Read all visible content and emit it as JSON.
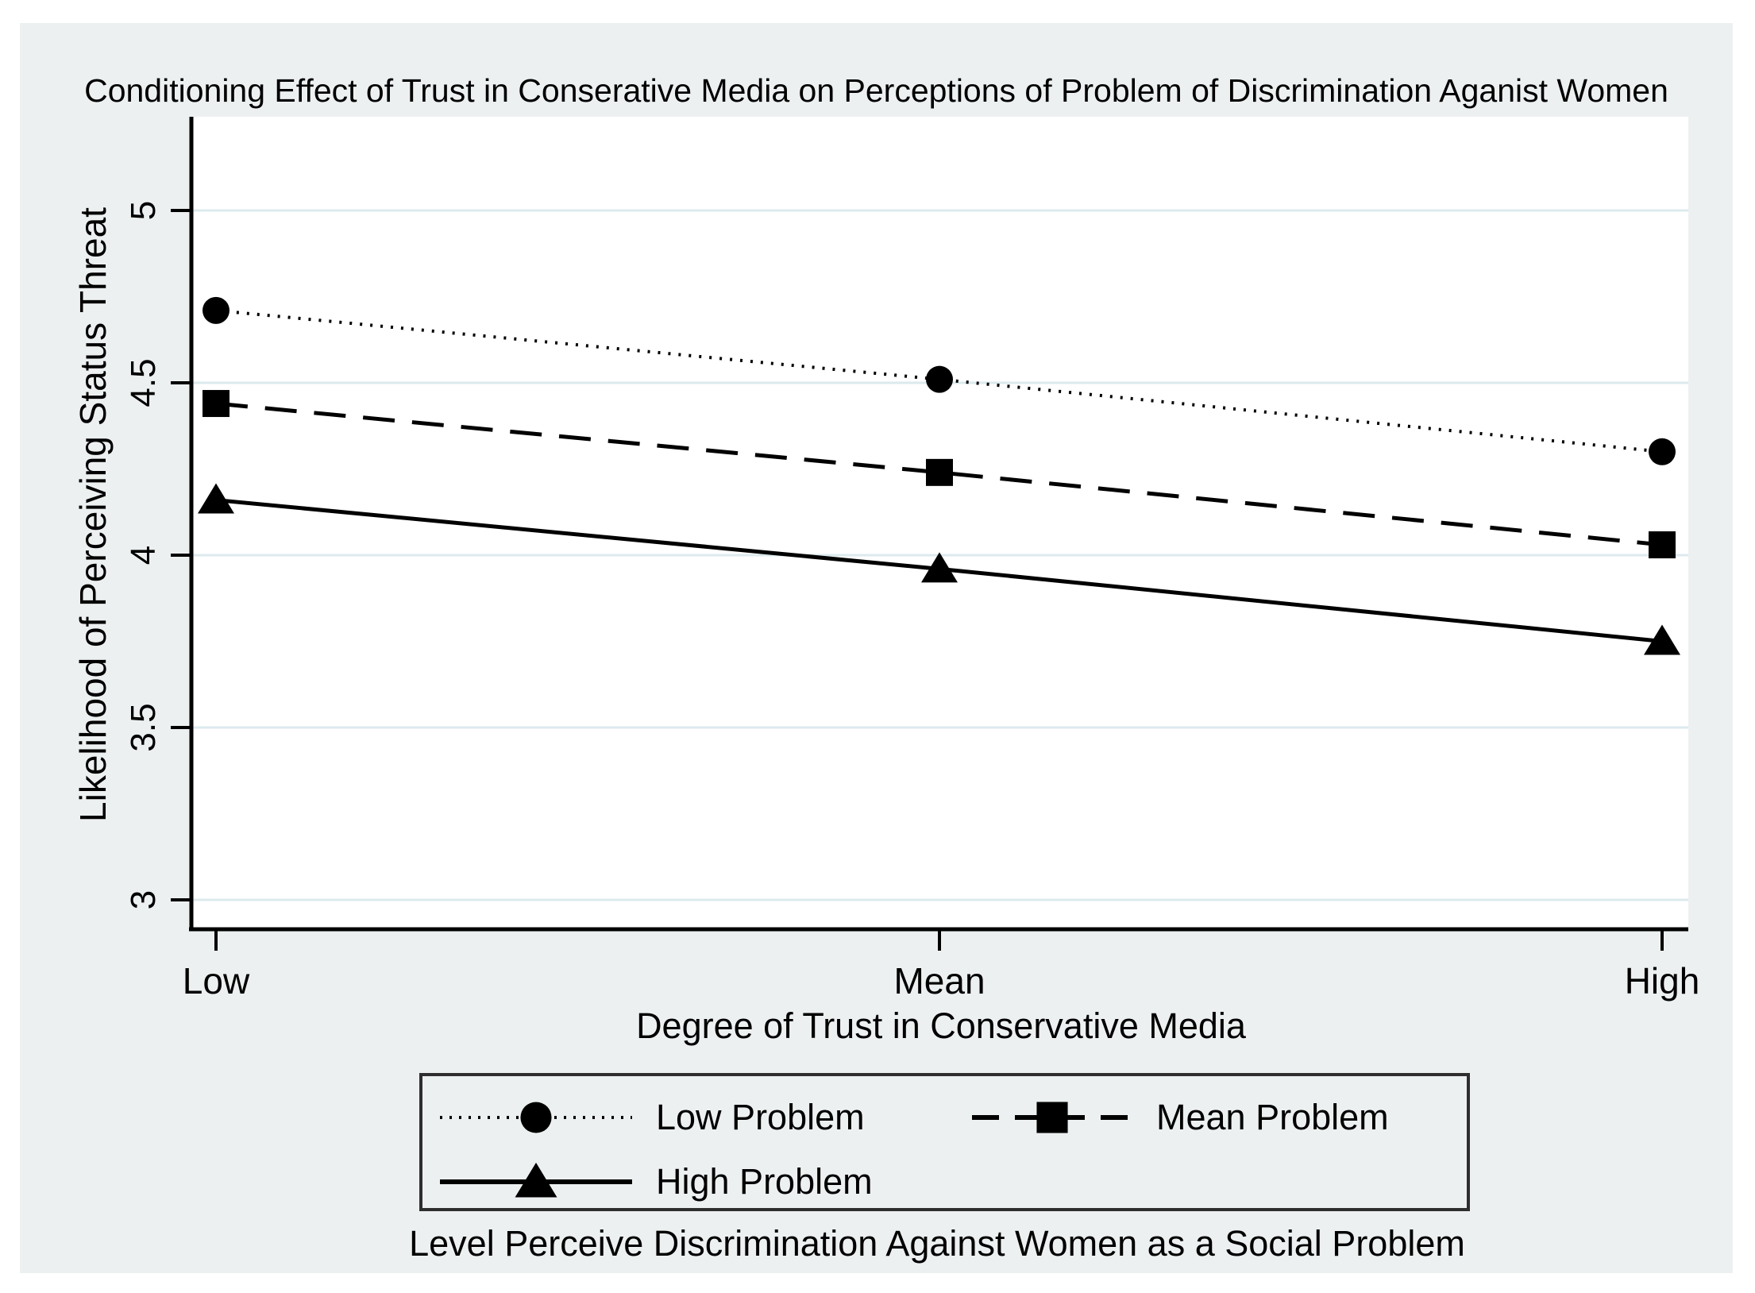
{
  "figure": {
    "background": "#edf0f1",
    "plot_background": "#ffffff",
    "grid_color": "#dceaee",
    "axis_color": "#000000",
    "series_color": "#000000",
    "legend_border_color": "#2e2e2e",
    "text_color": "#000000"
  },
  "chart_data": {
    "type": "line",
    "title": "Conditioning Effect of Trust in Conserative Media on Perceptions of Problem of Discrimination Aganist Women",
    "xlabel": "Degree of Trust in Conservative Media",
    "ylabel": "Likelihood of Perceiving Status Threat",
    "x_categories": [
      "Low",
      "Mean",
      "High"
    ],
    "y_ticks": [
      5,
      4.5,
      4,
      3.5,
      3
    ],
    "y_tick_labels": [
      "5",
      "4.5",
      "4",
      "3.5",
      "3"
    ],
    "ylim": [
      2.92,
      5.27
    ],
    "grid": true,
    "legend_position": "bottom-center",
    "legend_note": "Level Perceive Discrimination Against Women as a Social Problem",
    "series": [
      {
        "name": "Low Problem",
        "marker": "circle",
        "line_style": "dotted",
        "values": [
          4.71,
          4.51,
          4.3
        ]
      },
      {
        "name": "Mean Problem",
        "marker": "square",
        "line_style": "dashed",
        "values": [
          4.44,
          4.24,
          4.03
        ]
      },
      {
        "name": "High Problem",
        "marker": "triangle",
        "line_style": "solid",
        "values": [
          4.16,
          3.96,
          3.75
        ]
      }
    ]
  }
}
